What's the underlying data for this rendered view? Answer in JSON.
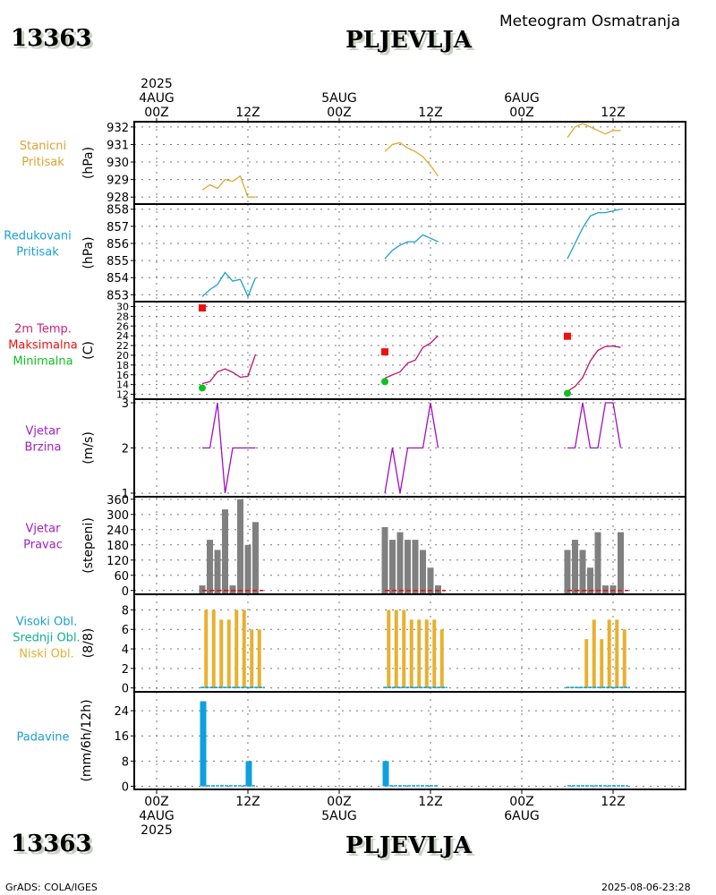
{
  "header": {
    "station_id": "13363",
    "station_name": "PLJEVLJA",
    "subtitle": "Meteogram Osmatranja"
  },
  "footer": {
    "station_id": "13363",
    "station_name": "PLJEVLJA",
    "credit": "GrADS: COLA/IGES",
    "timestamp": "2025-08-06-23:28"
  },
  "chart_data": {
    "type": "line",
    "title": "Meteogram Osmatranja",
    "time_axis": {
      "unit": "hours since 2025-08-04 00Z",
      "range": [
        -3,
        69
      ],
      "grid": true,
      "top_ticks": [
        {
          "hour": 0,
          "lines": [
            "2025",
            "4AUG",
            "00Z"
          ]
        },
        {
          "hour": 12,
          "lines": [
            "12Z"
          ]
        },
        {
          "hour": 24,
          "lines": [
            "5AUG",
            "00Z"
          ]
        },
        {
          "hour": 36,
          "lines": [
            "12Z"
          ]
        },
        {
          "hour": 48,
          "lines": [
            "6AUG",
            "00Z"
          ]
        },
        {
          "hour": 60,
          "lines": [
            "12Z"
          ]
        }
      ],
      "bottom_ticks": [
        {
          "hour": 0,
          "lines": [
            "00Z",
            "4AUG",
            "2025"
          ]
        },
        {
          "hour": 12,
          "lines": [
            "12Z"
          ]
        },
        {
          "hour": 24,
          "lines": [
            "00Z",
            "5AUG"
          ]
        },
        {
          "hour": 36,
          "lines": [
            "12Z"
          ]
        },
        {
          "hour": 48,
          "lines": [
            "00Z",
            "6AUG"
          ]
        },
        {
          "hour": 60,
          "lines": [
            "12Z"
          ]
        }
      ]
    },
    "panels": [
      {
        "id": "station-pressure",
        "labels": [
          {
            "text": "Stanicni",
            "color": "#e0a030"
          },
          {
            "text": "Pritisak",
            "color": "#e0a030"
          }
        ],
        "unit": "(hPa)",
        "ylim": [
          927.6,
          932.3
        ],
        "yticks": [
          928,
          929,
          930,
          931,
          932
        ],
        "series": [
          {
            "name": "Stanicni Pritisak",
            "kind": "line",
            "color": "#e0a830",
            "segments": [
              {
                "start_hour": 6,
                "values": [
                  928.4,
                  928.7,
                  928.5,
                  929.0,
                  928.9,
                  929.2,
                  928.0,
                  928.0
                ]
              },
              {
                "start_hour": 30,
                "values": [
                  930.6,
                  931.0,
                  931.1,
                  930.8,
                  930.6,
                  930.3,
                  929.8,
                  929.2
                ]
              },
              {
                "start_hour": 54,
                "values": [
                  931.4,
                  932.0,
                  932.2,
                  932.0,
                  931.8,
                  931.6,
                  931.8,
                  931.8
                ]
              }
            ]
          }
        ]
      },
      {
        "id": "reduced-pressure",
        "labels": [
          {
            "text": "Redukovani",
            "color": "#1aa0d0"
          },
          {
            "text": "Pritisak",
            "color": "#1aa0d0"
          }
        ],
        "unit": "(hPa)",
        "ylim": [
          852.6,
          858.3
        ],
        "yticks": [
          853,
          854,
          855,
          856,
          857,
          858
        ],
        "series": [
          {
            "name": "Redukovani Pritisak",
            "kind": "line",
            "color": "#1aa0d0",
            "segments": [
              {
                "start_hour": 6,
                "values": [
                  852.9,
                  853.3,
                  853.6,
                  854.3,
                  853.8,
                  853.9,
                  852.9,
                  854.0
                ]
              },
              {
                "start_hour": 30,
                "values": [
                  855.1,
                  855.6,
                  855.9,
                  856.1,
                  856.1,
                  856.5,
                  856.3,
                  856.1
                ]
              },
              {
                "start_hour": 54,
                "values": [
                  855.1,
                  856.0,
                  856.9,
                  857.6,
                  857.8,
                  857.8,
                  857.9,
                  858.0
                ]
              }
            ]
          }
        ]
      },
      {
        "id": "temperature",
        "labels": [
          {
            "text": "2m Temp.",
            "color": "#d0207a"
          },
          {
            "text": "Maksimalna",
            "color": "#ee1010"
          },
          {
            "text": "Minimalna",
            "color": "#10c020"
          }
        ],
        "unit": "(C)",
        "ylim": [
          11,
          31
        ],
        "yticks": [
          12,
          14,
          16,
          18,
          20,
          22,
          24,
          26,
          28,
          30
        ],
        "series": [
          {
            "name": "2m Temp.",
            "kind": "line",
            "color": "#c0106a",
            "segments": [
              {
                "start_hour": 6,
                "values": [
                  14.2,
                  14.6,
                  16.6,
                  17.2,
                  16.5,
                  15.5,
                  15.7,
                  20.2
                ]
              },
              {
                "start_hour": 30,
                "values": [
                  15.3,
                  16.0,
                  16.6,
                  18.4,
                  19.0,
                  21.6,
                  22.5,
                  24.0
                ]
              },
              {
                "start_hour": 54,
                "values": [
                  12.6,
                  13.6,
                  15.4,
                  18.8,
                  21.0,
                  21.8,
                  21.9,
                  21.6
                ]
              }
            ]
          },
          {
            "name": "Maksimalna",
            "kind": "marker-square",
            "color": "#ee1010",
            "points": [
              {
                "hour": 6,
                "value": 29.7
              },
              {
                "hour": 30,
                "value": 20.7
              },
              {
                "hour": 54,
                "value": 23.9
              }
            ]
          },
          {
            "name": "Minimalna",
            "kind": "marker-circle",
            "color": "#10c020",
            "points": [
              {
                "hour": 6,
                "value": 13.3
              },
              {
                "hour": 30,
                "value": 14.6
              },
              {
                "hour": 54,
                "value": 12.2
              }
            ]
          }
        ]
      },
      {
        "id": "wind-speed",
        "labels": [
          {
            "text": "Vjetar",
            "color": "#a020c0"
          },
          {
            "text": "Brzina",
            "color": "#a020c0"
          }
        ],
        "unit": "(m/s)",
        "ylim": [
          0.92,
          3.08
        ],
        "yticks": [
          1,
          2,
          3
        ],
        "series": [
          {
            "name": "Vjetar Brzina",
            "kind": "line",
            "color": "#a010c0",
            "segments": [
              {
                "start_hour": 6,
                "values": [
                  2,
                  2,
                  3,
                  1,
                  2,
                  2,
                  2,
                  2
                ]
              },
              {
                "start_hour": 30,
                "values": [
                  1,
                  2,
                  1,
                  2,
                  2,
                  2,
                  3,
                  2
                ]
              },
              {
                "start_hour": 54,
                "values": [
                  2,
                  2,
                  3,
                  2,
                  2,
                  3,
                  3,
                  2
                ]
              }
            ]
          }
        ]
      },
      {
        "id": "wind-direction",
        "labels": [
          {
            "text": "Vjetar",
            "color": "#a020c0"
          },
          {
            "text": "Pravac",
            "color": "#a020c0"
          }
        ],
        "unit": "(stepeni)",
        "ylim": [
          -15,
          370
        ],
        "yticks": [
          0,
          60,
          120,
          180,
          240,
          300,
          360
        ],
        "series": [
          {
            "name": "Vjetar Pravac",
            "kind": "bar",
            "color": "#808080",
            "segments": [
              {
                "start_hour": 5.5,
                "values": [
                  20,
                  200,
                  160,
                  320,
                  20,
                  360,
                  180,
                  270
                ]
              },
              {
                "start_hour": 29.5,
                "values": [
                  250,
                  200,
                  230,
                  200,
                  200,
                  160,
                  90,
                  20
                ]
              },
              {
                "start_hour": 53.5,
                "values": [
                  160,
                  200,
                  160,
                  90,
                  230,
                  20,
                  20,
                  230
                ]
              }
            ]
          },
          {
            "name": "Calm",
            "kind": "dashed",
            "color": "#dd1010",
            "segments": [
              {
                "from": 6,
                "to": 14,
                "value": 0
              },
              {
                "from": 30,
                "to": 38,
                "value": 0
              },
              {
                "from": 54,
                "to": 62,
                "value": 0
              }
            ]
          }
        ]
      },
      {
        "id": "clouds",
        "labels": [
          {
            "text": "Visoki Obl.",
            "color": "#1aa0d0"
          },
          {
            "text": "Srednji Obl.",
            "color": "#10b090"
          },
          {
            "text": "Niski Obl.",
            "color": "#e0b030"
          }
        ],
        "unit": "(8/8)",
        "ylim": [
          -0.4,
          9.6
        ],
        "yticks": [
          0,
          2,
          4,
          6,
          8
        ],
        "series": [
          {
            "name": "Niski Obl.",
            "kind": "bar",
            "color": "#e8b030",
            "segments": [
              {
                "start_hour": 6,
                "values": [
                  8,
                  8,
                  7,
                  7,
                  8,
                  8,
                  6,
                  6
                ]
              },
              {
                "start_hour": 30,
                "values": [
                  8,
                  8,
                  8,
                  7,
                  7,
                  7,
                  7,
                  6
                ]
              },
              {
                "start_hour": 54,
                "values": [
                  0,
                  0,
                  5,
                  7,
                  5,
                  7,
                  7,
                  6
                ]
              }
            ]
          },
          {
            "name": "Srednji Obl.",
            "kind": "baseline",
            "color": "#10b090",
            "segments": [
              {
                "from": 5.8,
                "to": 14.2
              },
              {
                "from": 29.8,
                "to": 38.2
              },
              {
                "from": 53.8,
                "to": 62.2
              }
            ]
          },
          {
            "name": "Visoki Obl.",
            "kind": "baseline",
            "color": "#1aa0d0",
            "segments": [
              {
                "from": 5.8,
                "to": 14.2
              },
              {
                "from": 29.8,
                "to": 38.2
              },
              {
                "from": 53.8,
                "to": 62.2
              }
            ]
          }
        ]
      },
      {
        "id": "precipitation",
        "labels": [
          {
            "text": "Padavine",
            "color": "#1aa0d0"
          }
        ],
        "unit": "(mm/6h/12h)",
        "ylim": [
          -1,
          30
        ],
        "yticks": [
          0,
          8,
          16,
          24
        ],
        "series": [
          {
            "name": "Padavine",
            "kind": "bar",
            "color": "#10a0e0",
            "bars": [
              {
                "hour": 6,
                "value": 27
              },
              {
                "hour": 12,
                "value": 8
              },
              {
                "hour": 30,
                "value": 8
              }
            ]
          },
          {
            "name": "Padavine trace",
            "kind": "baseline",
            "color": "#10a0e0",
            "segments": [
              {
                "from": 6,
                "to": 13
              },
              {
                "from": 30,
                "to": 37
              },
              {
                "from": 54,
                "to": 62
              }
            ]
          }
        ]
      }
    ]
  }
}
